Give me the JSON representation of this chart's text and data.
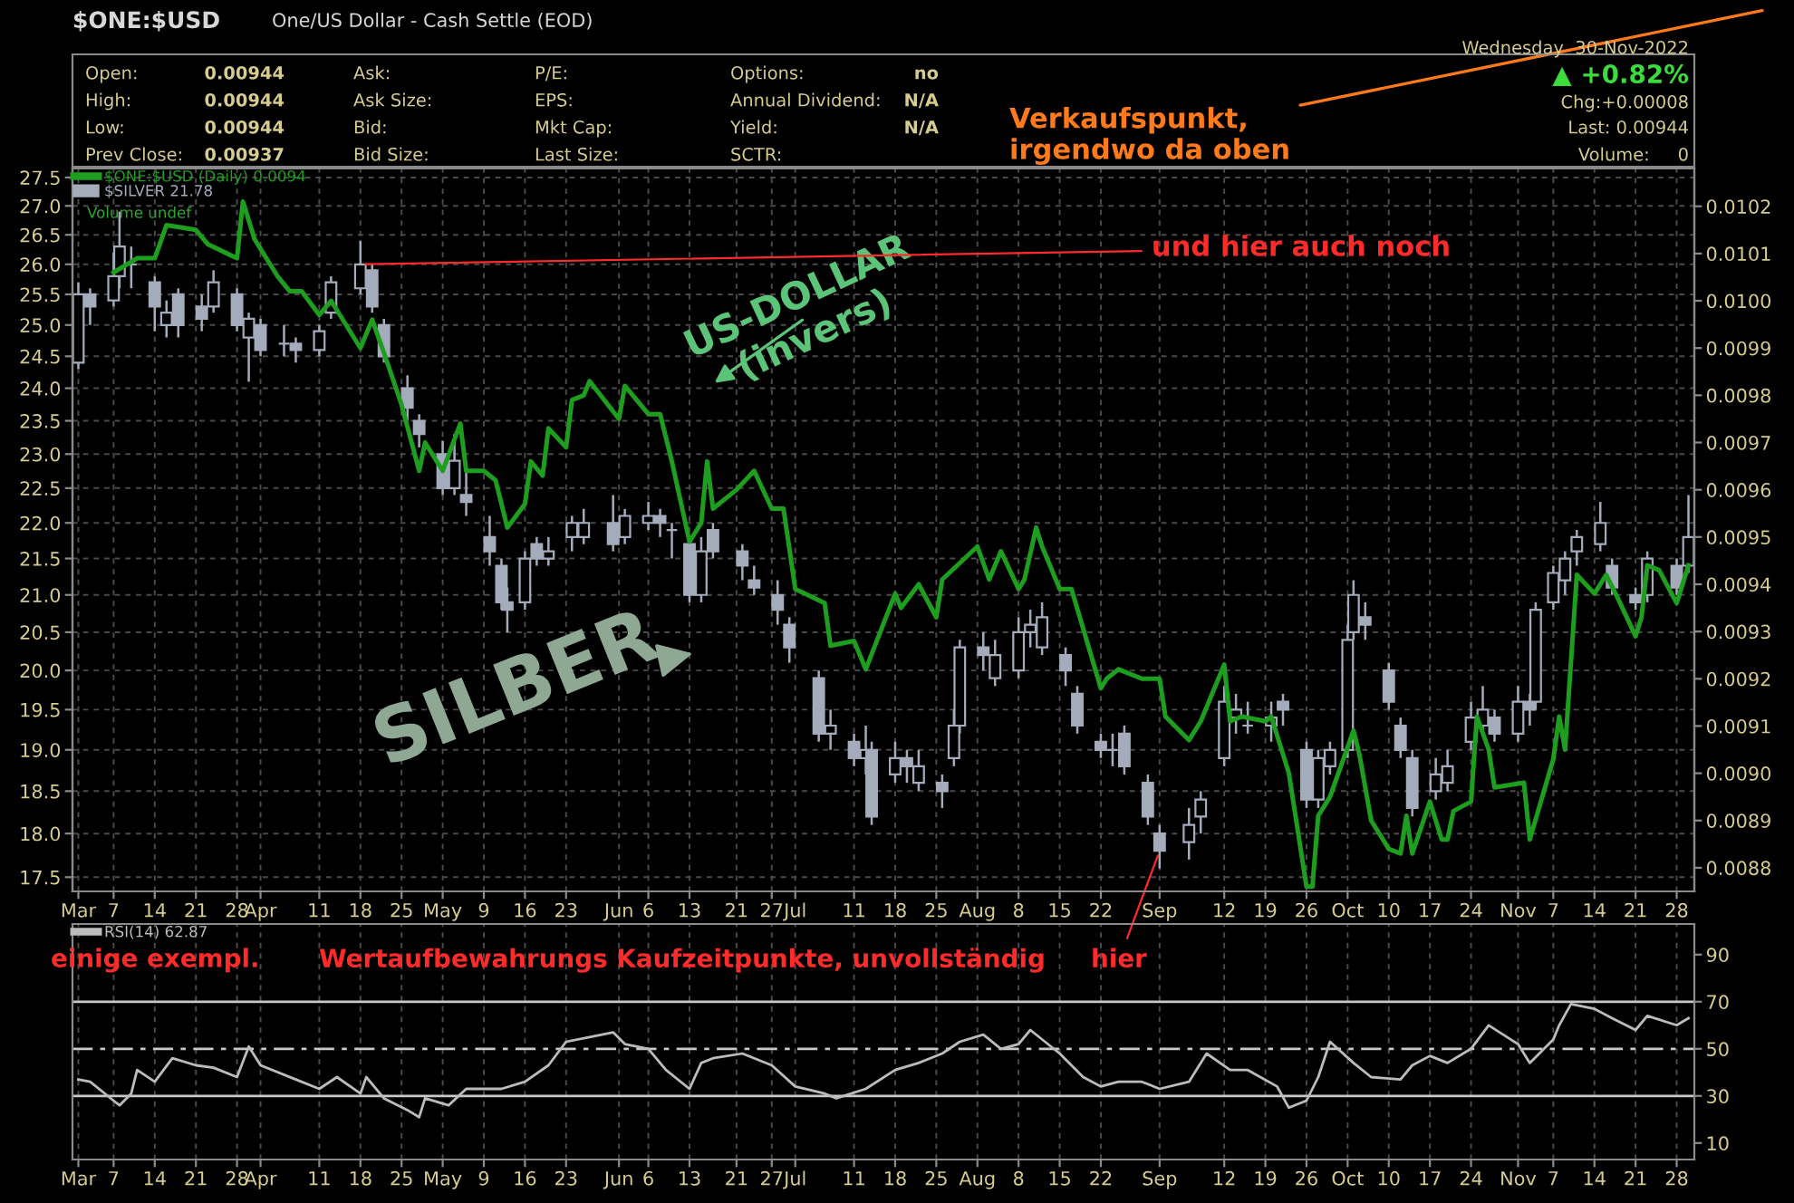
{
  "chart_data": [
    {
      "type": "candlestick",
      "title": "$ONE:$USD",
      "subtitle": "One/US Dollar - Cash Settle (EOD)",
      "xlim": [
        "2022-02-28",
        "2022-12-01"
      ],
      "xticks": [
        {
          "value": "2022-03-01",
          "label": "Mar"
        },
        {
          "value": "2022-03-07",
          "label": "7"
        },
        {
          "value": "2022-03-14",
          "label": "14"
        },
        {
          "value": "2022-03-21",
          "label": "21"
        },
        {
          "value": "2022-03-28",
          "label": "28"
        },
        {
          "value": "2022-04-01",
          "label": "Apr"
        },
        {
          "value": "2022-04-11",
          "label": "11"
        },
        {
          "value": "2022-04-18",
          "label": "18"
        },
        {
          "value": "2022-04-25",
          "label": "25"
        },
        {
          "value": "2022-05-02",
          "label": "May"
        },
        {
          "value": "2022-05-09",
          "label": "9"
        },
        {
          "value": "2022-05-16",
          "label": "16"
        },
        {
          "value": "2022-05-23",
          "label": "23"
        },
        {
          "value": "2022-06-01",
          "label": "Jun"
        },
        {
          "value": "2022-06-06",
          "label": "6"
        },
        {
          "value": "2022-06-13",
          "label": "13"
        },
        {
          "value": "2022-06-21",
          "label": "21"
        },
        {
          "value": "2022-06-27",
          "label": "27"
        },
        {
          "value": "2022-07-01",
          "label": "Jul"
        },
        {
          "value": "2022-07-11",
          "label": "11"
        },
        {
          "value": "2022-07-18",
          "label": "18"
        },
        {
          "value": "2022-07-25",
          "label": "25"
        },
        {
          "value": "2022-08-01",
          "label": "Aug"
        },
        {
          "value": "2022-08-08",
          "label": "8"
        },
        {
          "value": "2022-08-15",
          "label": "15"
        },
        {
          "value": "2022-08-22",
          "label": "22"
        },
        {
          "value": "2022-09-01",
          "label": "Sep"
        },
        {
          "value": "2022-09-12",
          "label": "12"
        },
        {
          "value": "2022-09-19",
          "label": "19"
        },
        {
          "value": "2022-09-26",
          "label": "26"
        },
        {
          "value": "2022-10-03",
          "label": "Oct"
        },
        {
          "value": "2022-10-10",
          "label": "10"
        },
        {
          "value": "2022-10-17",
          "label": "17"
        },
        {
          "value": "2022-10-24",
          "label": "24"
        },
        {
          "value": "2022-11-01",
          "label": "Nov"
        },
        {
          "value": "2022-11-07",
          "label": "7"
        },
        {
          "value": "2022-11-14",
          "label": "14"
        },
        {
          "value": "2022-11-21",
          "label": "21"
        },
        {
          "value": "2022-11-28",
          "label": "28"
        }
      ],
      "ylim": [
        17.34,
        27.66
      ],
      "log": "y",
      "yticks": [
        17.5,
        {
          "value": 18,
          "label": "18.0"
        },
        18.5,
        {
          "value": 19,
          "label": "19.0"
        },
        19.5,
        {
          "value": 20,
          "label": "20.0"
        },
        20.5,
        {
          "value": 21,
          "label": "21.0"
        },
        21.5,
        {
          "value": 22,
          "label": "22.0"
        },
        22.5,
        {
          "value": 23,
          "label": "23.0"
        },
        23.5,
        {
          "value": 24,
          "label": "24.0"
        },
        24.5,
        {
          "value": 25,
          "label": "25.0"
        },
        25.5,
        {
          "value": 26,
          "label": "26.0"
        },
        26.5,
        {
          "value": 27,
          "label": "27.0"
        },
        27.5
      ],
      "y2lim": [
        0.00875,
        0.01028
      ],
      "y2ticks": [
        0.0088,
        0.0089,
        {
          "value": 0.009,
          "label": "0.0090"
        },
        0.0091,
        0.0092,
        0.0093,
        0.0094,
        0.0095,
        0.0096,
        0.0097,
        0.0098,
        0.0099,
        {
          "value": 0.01,
          "label": "0.0100"
        },
        0.0101,
        0.0102
      ],
      "grid": true,
      "legend": "top left",
      "marker": "none",
      "series": [
        {
          "name": "$SILVER 21.78",
          "type": "candlestick",
          "color": "#a4acbc",
          "x": [
            "2022-03-01",
            "2022-03-03",
            "2022-03-07",
            "2022-03-08",
            "2022-03-10",
            "2022-03-14",
            "2022-03-16",
            "2022-03-18",
            "2022-03-22",
            "2022-03-24",
            "2022-03-28",
            "2022-03-30",
            "2022-04-01",
            "2022-04-05",
            "2022-04-07",
            "2022-04-11",
            "2022-04-13",
            "2022-04-18",
            "2022-04-20",
            "2022-04-22",
            "2022-04-26",
            "2022-04-28",
            "2022-05-02",
            "2022-05-04",
            "2022-05-06",
            "2022-05-10",
            "2022-05-12",
            "2022-05-13",
            "2022-05-16",
            "2022-05-18",
            "2022-05-20",
            "2022-05-24",
            "2022-05-26",
            "2022-05-31",
            "2022-06-02",
            "2022-06-06",
            "2022-06-08",
            "2022-06-10",
            "2022-06-13",
            "2022-06-15",
            "2022-06-17",
            "2022-06-22",
            "2022-06-24",
            "2022-06-28",
            "2022-06-30",
            "2022-07-05",
            "2022-07-07",
            "2022-07-11",
            "2022-07-13",
            "2022-07-14",
            "2022-07-18",
            "2022-07-20",
            "2022-07-22",
            "2022-07-26",
            "2022-07-28",
            "2022-07-29",
            "2022-08-02",
            "2022-08-04",
            "2022-08-08",
            "2022-08-10",
            "2022-08-12",
            "2022-08-16",
            "2022-08-18",
            "2022-08-22",
            "2022-08-24",
            "2022-08-26",
            "2022-08-30",
            "2022-09-01",
            "2022-09-06",
            "2022-09-08",
            "2022-09-12",
            "2022-09-14",
            "2022-09-16",
            "2022-09-20",
            "2022-09-22",
            "2022-09-26",
            "2022-09-28",
            "2022-09-30",
            "2022-10-03",
            "2022-10-04",
            "2022-10-06",
            "2022-10-10",
            "2022-10-12",
            "2022-10-14",
            "2022-10-18",
            "2022-10-20",
            "2022-10-24",
            "2022-10-26",
            "2022-10-28",
            "2022-11-01",
            "2022-11-03",
            "2022-11-04",
            "2022-11-07",
            "2022-11-09",
            "2022-11-11",
            "2022-11-15",
            "2022-11-17",
            "2022-11-21",
            "2022-11-23",
            "2022-11-28",
            "2022-11-30"
          ],
          "ohlc": [
            [
              24.4,
              25.7,
              24.3,
              25.5
            ],
            [
              25.5,
              25.6,
              25.0,
              25.3
            ],
            [
              25.4,
              26.2,
              25.3,
              25.8
            ],
            [
              25.8,
              26.9,
              25.6,
              26.3
            ],
            [
              26.0,
              26.3,
              25.6,
              26.0
            ],
            [
              25.7,
              25.8,
              24.9,
              25.3
            ],
            [
              25.0,
              25.4,
              24.8,
              25.2
            ],
            [
              25.5,
              25.6,
              24.8,
              25.0
            ],
            [
              25.3,
              25.5,
              24.9,
              25.1
            ],
            [
              25.3,
              25.9,
              25.2,
              25.7
            ],
            [
              25.5,
              25.6,
              24.9,
              25.0
            ],
            [
              24.8,
              25.2,
              24.1,
              25.1
            ],
            [
              25.0,
              25.1,
              24.5,
              24.6
            ],
            [
              24.7,
              25.0,
              24.5,
              24.7
            ],
            [
              24.7,
              24.8,
              24.4,
              24.6
            ],
            [
              24.6,
              25.0,
              24.5,
              24.9
            ],
            [
              25.2,
              25.8,
              25.1,
              25.7
            ],
            [
              25.6,
              26.4,
              25.5,
              26.0
            ],
            [
              25.9,
              26.0,
              25.2,
              25.3
            ],
            [
              25.0,
              25.1,
              24.4,
              24.5
            ],
            [
              24.0,
              24.2,
              23.5,
              23.7
            ],
            [
              23.5,
              23.6,
              23.1,
              23.3
            ],
            [
              23.0,
              23.2,
              22.4,
              22.5
            ],
            [
              22.5,
              23.3,
              22.4,
              22.9
            ],
            [
              22.4,
              22.8,
              22.1,
              22.3
            ],
            [
              21.8,
              22.1,
              21.4,
              21.6
            ],
            [
              21.4,
              21.5,
              20.8,
              20.9
            ],
            [
              20.9,
              21.1,
              20.5,
              20.8
            ],
            [
              20.9,
              21.6,
              20.8,
              21.5
            ],
            [
              21.7,
              21.8,
              21.4,
              21.5
            ],
            [
              21.5,
              21.8,
              21.4,
              21.6
            ],
            [
              21.8,
              22.1,
              21.6,
              22.0
            ],
            [
              21.8,
              22.2,
              21.7,
              22.0
            ],
            [
              22.0,
              22.4,
              21.6,
              21.7
            ],
            [
              21.8,
              22.2,
              21.7,
              22.1
            ],
            [
              22.0,
              22.3,
              21.9,
              22.1
            ],
            [
              22.1,
              22.2,
              21.8,
              22.0
            ],
            [
              21.9,
              22.0,
              21.5,
              21.9
            ],
            [
              21.7,
              21.8,
              20.9,
              21.0
            ],
            [
              21.0,
              21.8,
              20.9,
              21.6
            ],
            [
              21.9,
              22.0,
              21.5,
              21.6
            ],
            [
              21.6,
              21.7,
              21.2,
              21.4
            ],
            [
              21.2,
              21.4,
              21.0,
              21.1
            ],
            [
              21.0,
              21.2,
              20.6,
              20.8
            ],
            [
              20.6,
              20.7,
              20.1,
              20.3
            ],
            [
              19.9,
              20.0,
              19.1,
              19.2
            ],
            [
              19.2,
              19.5,
              19.0,
              19.3
            ],
            [
              19.1,
              19.2,
              18.8,
              18.9
            ],
            [
              18.9,
              19.3,
              18.7,
              19.0
            ],
            [
              19.0,
              19.1,
              18.1,
              18.2
            ],
            [
              18.7,
              19.1,
              18.6,
              18.9
            ],
            [
              18.9,
              19.0,
              18.6,
              18.8
            ],
            [
              18.6,
              19.0,
              18.5,
              18.8
            ],
            [
              18.6,
              18.7,
              18.3,
              18.5
            ],
            [
              18.9,
              19.5,
              18.8,
              19.3
            ],
            [
              19.3,
              20.4,
              19.2,
              20.3
            ],
            [
              20.3,
              20.5,
              20.0,
              20.2
            ],
            [
              19.9,
              20.4,
              19.8,
              20.2
            ],
            [
              20.0,
              20.7,
              19.9,
              20.5
            ],
            [
              20.5,
              20.8,
              20.3,
              20.6
            ],
            [
              20.3,
              20.9,
              20.2,
              20.7
            ],
            [
              20.2,
              20.3,
              19.8,
              20.0
            ],
            [
              19.7,
              19.8,
              19.2,
              19.3
            ],
            [
              19.1,
              19.2,
              18.9,
              19.0
            ],
            [
              19.0,
              19.2,
              18.8,
              19.0
            ],
            [
              19.2,
              19.3,
              18.7,
              18.8
            ],
            [
              18.6,
              18.7,
              18.1,
              18.2
            ],
            [
              18.0,
              18.1,
              17.6,
              17.8
            ],
            [
              17.9,
              18.3,
              17.7,
              18.1
            ],
            [
              18.2,
              18.5,
              18.0,
              18.4
            ],
            [
              18.9,
              19.8,
              18.8,
              19.6
            ],
            [
              19.4,
              19.7,
              19.2,
              19.5
            ],
            [
              19.3,
              19.6,
              19.2,
              19.3
            ],
            [
              19.3,
              19.6,
              19.1,
              19.4
            ],
            [
              19.6,
              19.7,
              19.3,
              19.5
            ],
            [
              19.0,
              19.1,
              18.3,
              18.4
            ],
            [
              18.4,
              19.0,
              18.3,
              18.9
            ],
            [
              18.8,
              19.1,
              18.7,
              19.0
            ],
            [
              19.0,
              20.6,
              18.9,
              20.4
            ],
            [
              20.5,
              21.2,
              20.4,
              21.0
            ],
            [
              20.7,
              20.9,
              20.4,
              20.6
            ],
            [
              20.0,
              20.1,
              19.5,
              19.6
            ],
            [
              19.3,
              19.4,
              18.9,
              19.0
            ],
            [
              18.9,
              19.0,
              18.2,
              18.3
            ],
            [
              18.5,
              18.9,
              18.4,
              18.7
            ],
            [
              18.6,
              19.0,
              18.5,
              18.8
            ],
            [
              19.1,
              19.6,
              19.0,
              19.4
            ],
            [
              19.3,
              19.8,
              19.2,
              19.5
            ],
            [
              19.4,
              19.5,
              19.1,
              19.2
            ],
            [
              19.2,
              19.8,
              19.1,
              19.6
            ],
            [
              19.6,
              19.7,
              19.3,
              19.5
            ],
            [
              19.6,
              20.9,
              19.5,
              20.8
            ],
            [
              20.9,
              21.4,
              20.8,
              21.3
            ],
            [
              21.2,
              21.6,
              21.0,
              21.5
            ],
            [
              21.6,
              21.9,
              21.4,
              21.8
            ],
            [
              21.7,
              22.3,
              21.6,
              22.0
            ],
            [
              21.4,
              21.5,
              21.0,
              21.1
            ],
            [
              21.0,
              21.1,
              20.8,
              20.9
            ],
            [
              21.0,
              21.6,
              20.9,
              21.5
            ],
            [
              21.4,
              21.5,
              21.0,
              21.1
            ],
            [
              21.4,
              22.4,
              21.3,
              21.8
            ]
          ]
        },
        {
          "name": "$ONE:$USD (Daily) 0.0094",
          "type": "line",
          "axis": "y2",
          "color": "#1e9e1e",
          "x": [
            "2022-03-07",
            "2022-03-11",
            "2022-03-14",
            "2022-03-16",
            "2022-03-21",
            "2022-03-23",
            "2022-03-28",
            "2022-03-29",
            "2022-03-31",
            "2022-04-04",
            "2022-04-06",
            "2022-04-08",
            "2022-04-11",
            "2022-04-13",
            "2022-04-18",
            "2022-04-20",
            "2022-04-22",
            "2022-04-25",
            "2022-04-28",
            "2022-04-29",
            "2022-05-02",
            "2022-05-05",
            "2022-05-06",
            "2022-05-09",
            "2022-05-11",
            "2022-05-13",
            "2022-05-16",
            "2022-05-17",
            "2022-05-19",
            "2022-05-20",
            "2022-05-23",
            "2022-05-24",
            "2022-05-26",
            "2022-05-27",
            "2022-06-01",
            "2022-06-02",
            "2022-06-06",
            "2022-06-08",
            "2022-06-10",
            "2022-06-13",
            "2022-06-15",
            "2022-06-16",
            "2022-06-17",
            "2022-06-21",
            "2022-06-24",
            "2022-06-27",
            "2022-06-29",
            "2022-07-01",
            "2022-07-06",
            "2022-07-07",
            "2022-07-11",
            "2022-07-13",
            "2022-07-18",
            "2022-07-19",
            "2022-07-22",
            "2022-07-25",
            "2022-07-26",
            "2022-08-01",
            "2022-08-03",
            "2022-08-05",
            "2022-08-08",
            "2022-08-09",
            "2022-08-11",
            "2022-08-12",
            "2022-08-15",
            "2022-08-17",
            "2022-08-22",
            "2022-08-23",
            "2022-08-25",
            "2022-08-29",
            "2022-09-01",
            "2022-09-02",
            "2022-09-06",
            "2022-09-08",
            "2022-09-12",
            "2022-09-13",
            "2022-09-15",
            "2022-09-19",
            "2022-09-20",
            "2022-09-21",
            "2022-09-23",
            "2022-09-26",
            "2022-09-27",
            "2022-09-28",
            "2022-09-29",
            "2022-09-30",
            "2022-10-04",
            "2022-10-05",
            "2022-10-07",
            "2022-10-10",
            "2022-10-12",
            "2022-10-13",
            "2022-10-14",
            "2022-10-17",
            "2022-10-19",
            "2022-10-20",
            "2022-10-21",
            "2022-10-24",
            "2022-10-25",
            "2022-10-27",
            "2022-10-28",
            "2022-11-02",
            "2022-11-03",
            "2022-11-07",
            "2022-11-08",
            "2022-11-09",
            "2022-11-11",
            "2022-11-14",
            "2022-11-16",
            "2022-11-18",
            "2022-11-21",
            "2022-11-22",
            "2022-11-23",
            "2022-11-25",
            "2022-11-28",
            "2022-11-30"
          ],
          "values": [
            0.01006,
            0.01009,
            0.01009,
            0.01016,
            0.01015,
            0.01012,
            0.01009,
            0.01021,
            0.01013,
            0.01005,
            0.01002,
            0.01002,
            0.00997,
            0.01,
            0.0099,
            0.00996,
            0.00989,
            0.00978,
            0.00964,
            0.0097,
            0.00964,
            0.00974,
            0.00964,
            0.00964,
            0.00962,
            0.00952,
            0.00957,
            0.00966,
            0.00963,
            0.00973,
            0.00969,
            0.00979,
            0.0098,
            0.00983,
            0.00975,
            0.00982,
            0.00976,
            0.00976,
            0.00966,
            0.00949,
            0.00953,
            0.00966,
            0.00956,
            0.0096,
            0.00964,
            0.00956,
            0.00956,
            0.00939,
            0.00936,
            0.00927,
            0.00928,
            0.00922,
            0.00938,
            0.00935,
            0.0094,
            0.00933,
            0.00941,
            0.00948,
            0.00941,
            0.00947,
            0.00939,
            0.00941,
            0.00952,
            0.00948,
            0.00939,
            0.00939,
            0.00918,
            0.0092,
            0.00922,
            0.0092,
            0.0092,
            0.00912,
            0.00907,
            0.00911,
            0.00923,
            0.00911,
            0.00912,
            0.00911,
            0.00912,
            0.00908,
            0.009,
            0.00876,
            0.00876,
            0.00891,
            0.00893,
            0.00895,
            0.00909,
            0.00904,
            0.0089,
            0.00884,
            0.00883,
            0.00891,
            0.00883,
            0.00894,
            0.00886,
            0.00886,
            0.00892,
            0.00894,
            0.00912,
            0.00905,
            0.00897,
            0.00898,
            0.00886,
            0.00903,
            0.00912,
            0.00905,
            0.00942,
            0.00938,
            0.00942,
            0.00937,
            0.00929,
            0.00933,
            0.00944,
            0.00943,
            0.00936,
            0.00944
          ]
        }
      ],
      "annotations": [
        "Open:",
        "0.00944",
        "High:",
        "0.00944",
        "Low:",
        "0.00944",
        "Prev Close:",
        "0.00937",
        "Ask:",
        "Ask Size:",
        "Bid:",
        "Bid Size:",
        "P/E:",
        "EPS:",
        "Mkt Cap:",
        "Last Size:",
        "Options:",
        "no",
        "Annual Dividend:",
        "N/A",
        "Yield:",
        "N/A",
        "SCTR:",
        "Wednesday  30-Nov-2022",
        "▲ +0.82%",
        "Chg:+0.00008",
        "Last: 0.00944",
        "Volume:     0",
        "Volume undef",
        "Verkaufspunkt,\nirgendwo da oben",
        "SILBER",
        "US-DOLLAR\n(invers)",
        {
          "text": "und hier auch noch",
          "x": "2022-04-18",
          "y": 26.0
        },
        "einige exempl.",
        "Wertaufbewahrungs Kaufzeitpunkte, unvollständig",
        {
          "text": "hier",
          "x": "2022-09-01",
          "y": 17.8
        }
      ]
    },
    {
      "type": "line",
      "xlim": [
        "2022-02-28",
        "2022-12-01"
      ],
      "ylim": [
        3,
        103
      ],
      "yticks": [
        10,
        30,
        50,
        70,
        90
      ],
      "legend": "top left",
      "marker": "none",
      "xticks": [
        {
          "value": "2022-03-01",
          "label": "Mar"
        },
        {
          "value": "2022-03-07",
          "label": "7"
        },
        {
          "value": "2022-03-14",
          "label": "14"
        },
        {
          "value": "2022-03-21",
          "label": "21"
        },
        {
          "value": "2022-03-28",
          "label": "28"
        },
        {
          "value": "2022-04-01",
          "label": "Apr"
        },
        {
          "value": "2022-04-11",
          "label": "11"
        },
        {
          "value": "2022-04-18",
          "label": "18"
        },
        {
          "value": "2022-04-25",
          "label": "25"
        },
        {
          "value": "2022-05-02",
          "label": "May"
        },
        {
          "value": "2022-05-09",
          "label": "9"
        },
        {
          "value": "2022-05-16",
          "label": "16"
        },
        {
          "value": "2022-05-23",
          "label": "23"
        },
        {
          "value": "2022-06-01",
          "label": "Jun"
        },
        {
          "value": "2022-06-06",
          "label": "6"
        },
        {
          "value": "2022-06-13",
          "label": "13"
        },
        {
          "value": "2022-06-21",
          "label": "21"
        },
        {
          "value": "2022-06-27",
          "label": "27"
        },
        {
          "value": "2022-07-01",
          "label": "Jul"
        },
        {
          "value": "2022-07-11",
          "label": "11"
        },
        {
          "value": "2022-07-18",
          "label": "18"
        },
        {
          "value": "2022-07-25",
          "label": "25"
        },
        {
          "value": "2022-08-01",
          "label": "Aug"
        },
        {
          "value": "2022-08-08",
          "label": "8"
        },
        {
          "value": "2022-08-15",
          "label": "15"
        },
        {
          "value": "2022-08-22",
          "label": "22"
        },
        {
          "value": "2022-09-01",
          "label": "Sep"
        },
        {
          "value": "2022-09-12",
          "label": "12"
        },
        {
          "value": "2022-09-19",
          "label": "19"
        },
        {
          "value": "2022-09-26",
          "label": "26"
        },
        {
          "value": "2022-10-03",
          "label": "Oct"
        },
        {
          "value": "2022-10-10",
          "label": "10"
        },
        {
          "value": "2022-10-17",
          "label": "17"
        },
        {
          "value": "2022-10-24",
          "label": "24"
        },
        {
          "value": "2022-11-01",
          "label": "Nov"
        },
        {
          "value": "2022-11-07",
          "label": "7"
        },
        {
          "value": "2022-11-14",
          "label": "14"
        },
        {
          "value": "2022-11-21",
          "label": "21"
        },
        {
          "value": "2022-11-28",
          "label": "28"
        }
      ],
      "grid": "x",
      "ref_lines": [
        {
          "axis": "y",
          "value": 30,
          "color": "#c8c8c8",
          "line_style": "solid"
        },
        {
          "axis": "y",
          "value": 50,
          "color": "#c8c8c8",
          "line_style": "dashed"
        },
        {
          "axis": "y",
          "value": 70,
          "color": "#c8c8c8",
          "line_style": "solid"
        }
      ],
      "series": [
        {
          "name": "RSI(14) 62.87",
          "color": "#bcbcbc",
          "x": [
            "2022-03-01",
            "2022-03-03",
            "2022-03-07",
            "2022-03-08",
            "2022-03-10",
            "2022-03-11",
            "2022-03-14",
            "2022-03-17",
            "2022-03-21",
            "2022-03-24",
            "2022-03-28",
            "2022-03-30",
            "2022-04-01",
            "2022-04-07",
            "2022-04-11",
            "2022-04-14",
            "2022-04-18",
            "2022-04-19",
            "2022-04-22",
            "2022-04-26",
            "2022-04-28",
            "2022-04-29",
            "2022-05-03",
            "2022-05-06",
            "2022-05-12",
            "2022-05-16",
            "2022-05-20",
            "2022-05-23",
            "2022-05-27",
            "2022-05-31",
            "2022-06-02",
            "2022-06-06",
            "2022-06-09",
            "2022-06-13",
            "2022-06-15",
            "2022-06-17",
            "2022-06-22",
            "2022-06-27",
            "2022-07-01",
            "2022-07-06",
            "2022-07-08",
            "2022-07-13",
            "2022-07-18",
            "2022-07-22",
            "2022-07-26",
            "2022-07-29",
            "2022-08-02",
            "2022-08-05",
            "2022-08-08",
            "2022-08-10",
            "2022-08-15",
            "2022-08-19",
            "2022-08-22",
            "2022-08-25",
            "2022-08-29",
            "2022-09-01",
            "2022-09-06",
            "2022-09-09",
            "2022-09-13",
            "2022-09-16",
            "2022-09-21",
            "2022-09-23",
            "2022-09-26",
            "2022-09-28",
            "2022-09-30",
            "2022-10-04",
            "2022-10-07",
            "2022-10-12",
            "2022-10-14",
            "2022-10-17",
            "2022-10-20",
            "2022-10-24",
            "2022-10-27",
            "2022-11-01",
            "2022-11-03",
            "2022-11-07",
            "2022-11-08",
            "2022-11-10",
            "2022-11-14",
            "2022-11-17",
            "2022-11-21",
            "2022-11-23",
            "2022-11-28",
            "2022-11-30"
          ],
          "values": [
            37,
            36,
            28,
            26,
            31,
            41,
            36,
            46,
            43,
            42,
            38,
            51,
            43,
            37,
            33,
            38,
            31,
            38,
            29,
            24,
            21,
            29,
            26,
            33,
            33,
            36,
            43,
            53,
            55,
            57,
            52,
            50,
            41,
            33,
            44,
            46,
            48,
            43,
            34,
            31,
            29,
            33,
            41,
            44,
            48,
            53,
            56,
            50,
            52,
            58,
            48,
            38,
            34,
            36,
            36,
            33,
            36,
            48,
            41,
            41,
            34,
            25,
            28,
            38,
            53,
            44,
            38,
            37,
            43,
            47,
            44,
            50,
            60,
            52,
            44,
            54,
            60,
            69,
            67,
            63,
            58,
            64,
            60,
            63
          ]
        }
      ]
    }
  ]
}
